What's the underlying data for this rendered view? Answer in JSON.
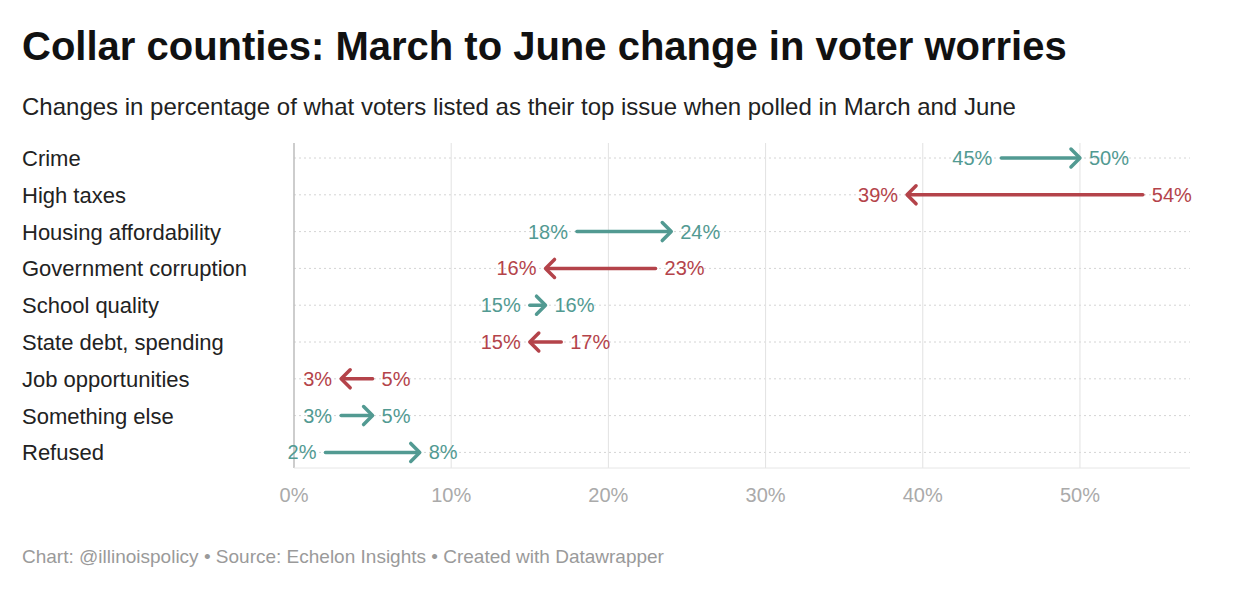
{
  "chart_data": {
    "type": "arrow",
    "title": "Collar counties: March to June change in voter worries",
    "subtitle": "Changes in percentage of what voters listed as their top issue when polled in March and June",
    "caption": "Chart: @illinoispolicy • Source: Echelon Insights • Created with Datawrapper",
    "orientation": "horizontal",
    "grid": true,
    "data_labels": true,
    "categories": [
      "Crime",
      "High taxes",
      "Housing affordability",
      "Government corruption",
      "School quality",
      "State debt, spending",
      "Job opportunities",
      "Something else",
      "Refused"
    ],
    "from": [
      45,
      54,
      18,
      23,
      15,
      17,
      5,
      3,
      2
    ],
    "from_labels": [
      "45%",
      "54%",
      "18%",
      "23%",
      "15%",
      "17%",
      "5%",
      "3%",
      "2%"
    ],
    "values": [
      50,
      39,
      24,
      16,
      16,
      15,
      3,
      5,
      8
    ],
    "value_labels": [
      "50%",
      "39%",
      "24%",
      "16%",
      "16%",
      "15%",
      "3%",
      "5%",
      "8%"
    ],
    "colors": [
      "#529a92",
      "#b4434a",
      "#529a92",
      "#b4434a",
      "#529a92",
      "#b4434a",
      "#b4434a",
      "#529a92",
      "#529a92"
    ],
    "xlim": [
      0,
      57
    ],
    "xticks": [
      {
        "value": 0,
        "label": "0%"
      },
      {
        "value": 10,
        "label": "10%"
      },
      {
        "value": 20,
        "label": "20%"
      },
      {
        "value": 30,
        "label": "30%"
      },
      {
        "value": 40,
        "label": "40%"
      },
      {
        "value": 50,
        "label": "50%"
      }
    ]
  }
}
